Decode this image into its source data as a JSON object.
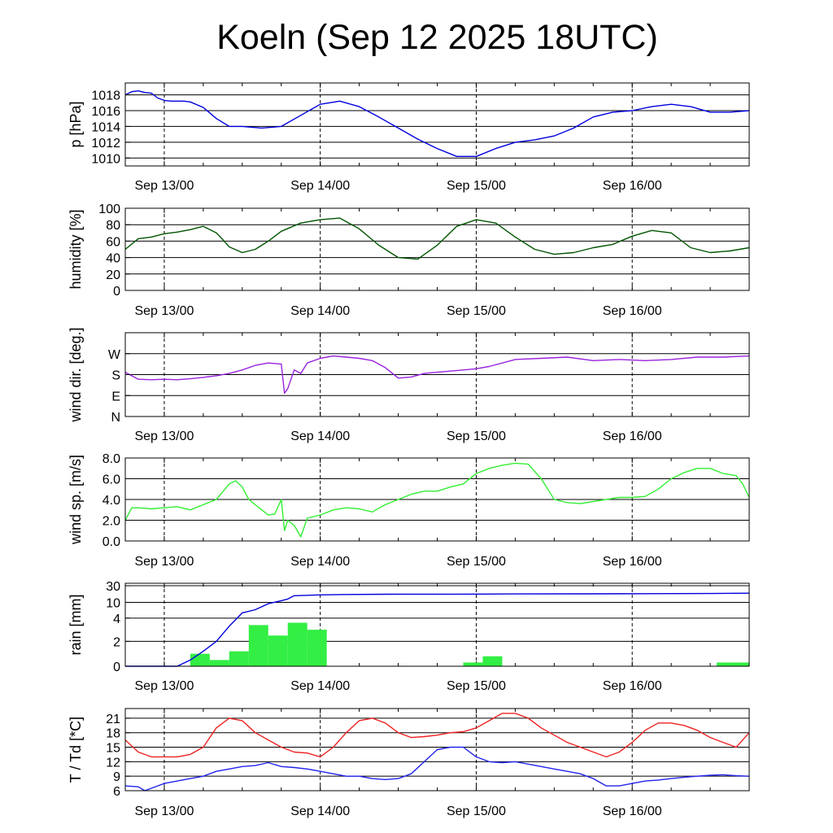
{
  "title": "Koeln (Sep 12 2025 18UTC)",
  "x_tick_labels": [
    "Sep 13/00",
    "Sep 14/00",
    "Sep 15/00",
    "Sep 16/00"
  ],
  "chart_data": [
    {
      "type": "line",
      "name": "pressure",
      "ylabel": "p [hPa]",
      "ylim": [
        1009,
        1019.5
      ],
      "yticks": [
        1010,
        1012,
        1014,
        1016,
        1018
      ],
      "ytick_labels": [
        "1010",
        "1012",
        "1014",
        "1016",
        "1018"
      ],
      "xlabel_ticks": [
        "Sep 13/00",
        "Sep 14/00",
        "Sep 15/00",
        "Sep 16/00"
      ],
      "series": [
        {
          "name": "p",
          "color": "#0000dd",
          "x": [
            0,
            1,
            2,
            3,
            4,
            5,
            6,
            7,
            8,
            9,
            10,
            12,
            14,
            16,
            18,
            21,
            24,
            27,
            30,
            33,
            36,
            39,
            42,
            45,
            48,
            51,
            54,
            57,
            60,
            63,
            66,
            69,
            72,
            75,
            78,
            81,
            84,
            87,
            90,
            93,
            96
          ],
          "y": [
            1018,
            1018.4,
            1018.5,
            1018.3,
            1018.2,
            1017.6,
            1017.3,
            1017.2,
            1017.2,
            1017.2,
            1017.1,
            1016.4,
            1015,
            1014,
            1014,
            1013.8,
            1014,
            1015.4,
            1016.8,
            1017.2,
            1016.5,
            1015.2,
            1013.8,
            1012.4,
            1011.2,
            1010.2,
            1010.2,
            1011.2,
            1012,
            1012.3,
            1012.8,
            1013.8,
            1015.2,
            1015.8,
            1016,
            1016.5,
            1016.8,
            1016.5,
            1015.8,
            1015.8,
            1016
          ]
        }
      ]
    },
    {
      "type": "line",
      "name": "humidity",
      "ylabel": "humidity [%]",
      "ylim": [
        0,
        100
      ],
      "yticks": [
        0,
        20,
        40,
        60,
        80,
        100
      ],
      "ytick_labels": [
        "0",
        "20",
        "40",
        "60",
        "80",
        "100"
      ],
      "xlabel_ticks": [
        "Sep 13/00",
        "Sep 14/00",
        "Sep 15/00",
        "Sep 16/00"
      ],
      "series": [
        {
          "name": "humidity",
          "color": "#005500",
          "x": [
            0,
            2,
            4,
            6,
            8,
            10,
            12,
            14,
            15,
            16,
            18,
            20,
            22,
            24,
            27,
            30,
            33,
            36,
            39,
            42,
            45,
            48,
            51,
            54,
            57,
            60,
            63,
            66,
            69,
            72,
            75,
            78,
            81,
            84,
            87,
            90,
            93,
            96
          ],
          "y": [
            50,
            63,
            65,
            69,
            71,
            74,
            78,
            70,
            62,
            53,
            46,
            50,
            60,
            72,
            82,
            86,
            88,
            75,
            55,
            40,
            38,
            55,
            78,
            86,
            82,
            65,
            50,
            44,
            46,
            52,
            56,
            66,
            73,
            70,
            52,
            46,
            48,
            52
          ]
        }
      ]
    },
    {
      "type": "line",
      "name": "wind_direction",
      "ylabel": "wind dir. [deg.]",
      "ylim": [
        0,
        360
      ],
      "yticks": [
        0,
        90,
        180,
        270
      ],
      "ytick_labels": [
        "N",
        "E",
        "S",
        "W"
      ],
      "xlabel_ticks": [
        "Sep 13/00",
        "Sep 14/00",
        "Sep 15/00",
        "Sep 16/00"
      ],
      "series": [
        {
          "name": "wind dir",
          "color": "#9922dd",
          "x": [
            0,
            2,
            4,
            6,
            8,
            10,
            12,
            14,
            16,
            18,
            20,
            22,
            24,
            24.5,
            25,
            26,
            27,
            28,
            30,
            32,
            34,
            36,
            38,
            40,
            42,
            44,
            46,
            48,
            50,
            52,
            54,
            56,
            60,
            64,
            68,
            72,
            76,
            80,
            84,
            88,
            92,
            96
          ],
          "y": [
            190,
            160,
            158,
            160,
            158,
            162,
            168,
            175,
            185,
            200,
            220,
            230,
            225,
            100,
            120,
            200,
            185,
            230,
            250,
            260,
            255,
            250,
            240,
            210,
            165,
            170,
            185,
            190,
            195,
            200,
            205,
            215,
            245,
            250,
            255,
            240,
            245,
            240,
            245,
            255,
            255,
            260
          ]
        }
      ]
    },
    {
      "type": "line",
      "name": "wind_speed",
      "ylabel": "wind sp. [m/s]",
      "ylim": [
        0,
        8.0
      ],
      "yticks": [
        0,
        2,
        4,
        6,
        8
      ],
      "ytick_labels": [
        "0.0",
        "2.0",
        "4.0",
        "6.0",
        "8.0"
      ],
      "xlabel_ticks": [
        "Sep 13/00",
        "Sep 14/00",
        "Sep 15/00",
        "Sep 16/00"
      ],
      "series": [
        {
          "name": "wind speed",
          "color": "#33ee33",
          "x": [
            0,
            1,
            2,
            4,
            6,
            8,
            10,
            12,
            14,
            16,
            17,
            18,
            19,
            20,
            21,
            22,
            23,
            24,
            24.5,
            25,
            26,
            27,
            28,
            30,
            32,
            34,
            36,
            38,
            40,
            42,
            44,
            46,
            48,
            50,
            52,
            54,
            56,
            58,
            60,
            62,
            64,
            66,
            68,
            70,
            72,
            74,
            76,
            78,
            80,
            82,
            84,
            86,
            88,
            90,
            92,
            94,
            95,
            96
          ],
          "y": [
            2,
            3.2,
            3.2,
            3.1,
            3.2,
            3.3,
            3,
            3.5,
            4,
            5.5,
            5.8,
            5.2,
            4,
            3.5,
            3,
            2.5,
            2.6,
            4,
            1,
            2,
            1.5,
            0.4,
            2.2,
            2.5,
            3,
            3.2,
            3.1,
            2.8,
            3.5,
            4,
            4.5,
            4.8,
            4.8,
            5.2,
            5.5,
            6.5,
            7,
            7.3,
            7.5,
            7.4,
            6,
            4,
            3.7,
            3.6,
            3.8,
            4,
            4.2,
            4.2,
            4.3,
            5,
            6,
            6.6,
            7,
            7,
            6.5,
            6.3,
            5.5,
            4.2
          ]
        }
      ]
    },
    {
      "type": "bar+line",
      "name": "rain",
      "ylabel": "rain [mm]",
      "ylim": [
        0,
        30
      ],
      "yticks": [
        0,
        2,
        4,
        10,
        30
      ],
      "ytick_labels": [
        "0",
        "2",
        "4",
        "10",
        "30"
      ],
      "xlabel_ticks": [
        "Sep 13/00",
        "Sep 14/00",
        "Sep 15/00",
        "Sep 16/00"
      ],
      "bars": {
        "name": "hourly rain",
        "color": "#33ee44",
        "x_start": [
          10,
          13,
          16,
          19,
          22,
          25,
          28,
          52,
          55,
          91
        ],
        "x_end": [
          13,
          16,
          19,
          22,
          25,
          28,
          31,
          55,
          58,
          96
        ],
        "values": [
          1.0,
          0.5,
          1.2,
          3.4,
          2.5,
          3.6,
          3.0,
          0.3,
          0.8,
          0.3
        ]
      },
      "series": [
        {
          "name": "accumulated rain",
          "color": "#0000dd",
          "x": [
            0,
            8,
            10,
            12,
            14,
            16,
            18,
            20,
            22,
            24,
            25,
            26,
            30,
            34,
            40,
            50,
            55,
            60,
            70,
            80,
            90,
            96
          ],
          "y": [
            0,
            0,
            0.5,
            1.2,
            2,
            3.3,
            6,
            7.2,
            9.5,
            12,
            14,
            18,
            19,
            19.5,
            19.8,
            19.9,
            20,
            20.2,
            20.3,
            20.5,
            20.6,
            21
          ]
        }
      ]
    },
    {
      "type": "line",
      "name": "temperature",
      "ylabel": "T / Td [*C]",
      "ylim": [
        6,
        23
      ],
      "yticks": [
        6,
        9,
        12,
        15,
        18,
        21
      ],
      "ytick_labels": [
        "6",
        "9",
        "12",
        "15",
        "18",
        "21"
      ],
      "xlabel_ticks": [
        "Sep 13/00",
        "Sep 14/00",
        "Sep 15/00",
        "Sep 16/00"
      ],
      "series": [
        {
          "name": "T",
          "color": "#ee2222",
          "x": [
            0,
            2,
            4,
            6,
            8,
            10,
            12,
            14,
            16,
            18,
            20,
            22,
            24,
            26,
            28,
            30,
            32,
            34,
            36,
            38,
            40,
            42,
            44,
            46,
            48,
            50,
            52,
            54,
            56,
            58,
            60,
            62,
            64,
            66,
            68,
            70,
            72,
            74,
            76,
            78,
            80,
            82,
            84,
            86,
            88,
            90,
            92,
            94,
            96
          ],
          "y": [
            16.5,
            14,
            13,
            13,
            13,
            13.5,
            15,
            19,
            21,
            20.5,
            18,
            16.5,
            15,
            14,
            13.8,
            13,
            15,
            18,
            20.5,
            21,
            20,
            18,
            17,
            17.2,
            17.5,
            18,
            18.2,
            19,
            20.5,
            22,
            22,
            21,
            19,
            17.5,
            16,
            15,
            14,
            13,
            14,
            16,
            18.5,
            20,
            20,
            19.5,
            18.5,
            17,
            16,
            15,
            18
          ]
        },
        {
          "name": "Td",
          "color": "#2222ee",
          "x": [
            0,
            2,
            3,
            4,
            6,
            8,
            10,
            12,
            14,
            16,
            18,
            20,
            22,
            24,
            26,
            28,
            30,
            32,
            34,
            36,
            38,
            40,
            42,
            44,
            46,
            48,
            50,
            52,
            54,
            56,
            58,
            60,
            62,
            64,
            66,
            68,
            70,
            72,
            74,
            76,
            78,
            80,
            82,
            84,
            86,
            88,
            90,
            92,
            94,
            96
          ],
          "y": [
            7,
            6.8,
            6,
            6.5,
            7.5,
            8,
            8.5,
            9,
            10,
            10.5,
            11,
            11.2,
            11.8,
            11,
            10.8,
            10.5,
            10,
            9.5,
            9,
            9,
            8.5,
            8.3,
            8.5,
            9.5,
            12,
            14.5,
            15,
            15,
            13,
            12,
            11.8,
            12,
            11.5,
            11,
            10.5,
            10,
            9.5,
            8.5,
            7,
            7,
            7.5,
            8,
            8.2,
            8.5,
            8.8,
            9,
            9.2,
            9.3,
            9.1,
            9
          ]
        }
      ]
    }
  ]
}
